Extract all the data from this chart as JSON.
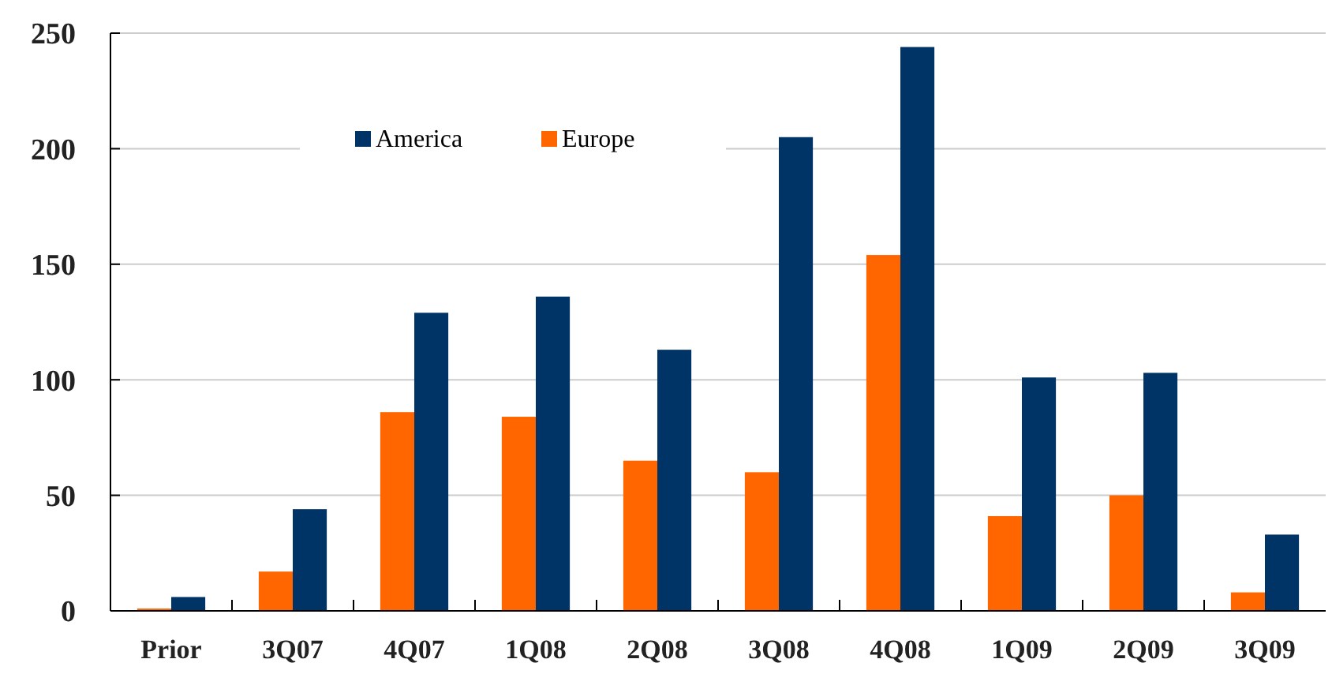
{
  "chart_data": {
    "type": "bar",
    "categories": [
      "Prior",
      "3Q07",
      "4Q07",
      "1Q08",
      "2Q08",
      "3Q08",
      "4Q08",
      "1Q09",
      "2Q09",
      "3Q09"
    ],
    "series": [
      {
        "name": "America",
        "color": "#003366",
        "values": [
          6,
          44,
          129,
          136,
          113,
          205,
          244,
          101,
          103,
          33
        ]
      },
      {
        "name": "Europe",
        "color": "#ff6600",
        "values": [
          1,
          17,
          86,
          84,
          65,
          60,
          154,
          41,
          50,
          8
        ]
      }
    ],
    "ylim": [
      0,
      250
    ],
    "yticks": [
      0,
      50,
      100,
      150,
      200,
      250
    ],
    "grid": "y",
    "legend": "top"
  }
}
